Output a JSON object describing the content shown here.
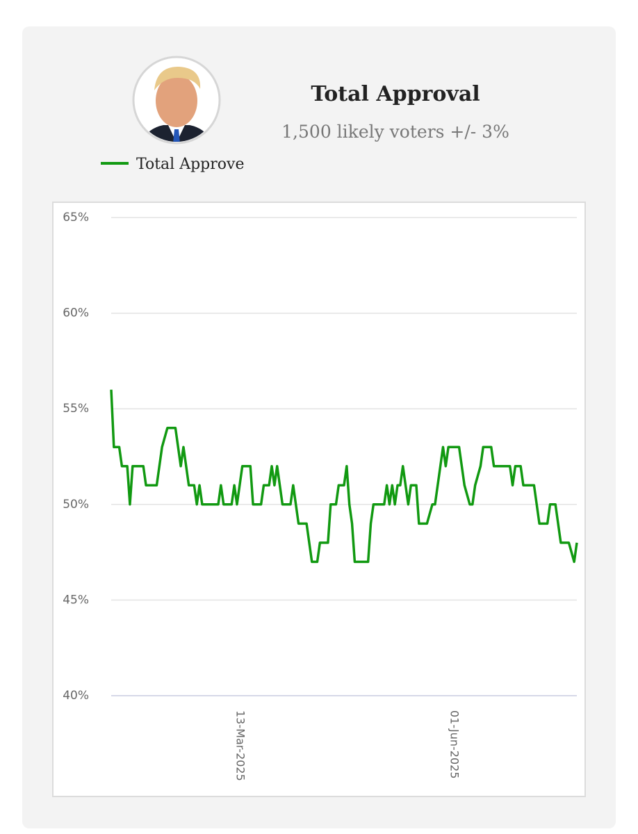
{
  "chart_data": {
    "type": "line",
    "title": "Total Approval",
    "subtitle": "1,500 likely voters +/- 3%",
    "x": [
      "2025-01-24",
      "2025-01-25",
      "2025-01-27",
      "2025-01-28",
      "2025-01-30",
      "2025-01-31",
      "2025-02-01",
      "2025-02-05",
      "2025-02-06",
      "2025-02-10",
      "2025-02-11",
      "2025-02-12",
      "2025-02-14",
      "2025-02-17",
      "2025-02-18",
      "2025-02-19",
      "2025-02-20",
      "2025-02-21",
      "2025-02-22",
      "2025-02-24",
      "2025-02-25",
      "2025-02-26",
      "2025-02-27",
      "2025-03-05",
      "2025-03-06",
      "2025-03-07",
      "2025-03-10",
      "2025-03-11",
      "2025-03-12",
      "2025-03-13",
      "2025-03-14",
      "2025-03-17",
      "2025-03-18",
      "2025-03-21",
      "2025-03-22",
      "2025-03-24",
      "2025-03-25",
      "2025-03-26",
      "2025-03-27",
      "2025-03-28",
      "2025-03-29",
      "2025-04-01",
      "2025-04-02",
      "2025-04-03",
      "2025-04-04",
      "2025-04-07",
      "2025-04-08",
      "2025-04-09",
      "2025-04-11",
      "2025-04-12",
      "2025-04-15",
      "2025-04-16",
      "2025-04-18",
      "2025-04-19",
      "2025-04-21",
      "2025-04-22",
      "2025-04-23",
      "2025-04-24",
      "2025-04-25",
      "2025-04-30",
      "2025-05-01",
      "2025-05-02",
      "2025-05-06",
      "2025-05-07",
      "2025-05-08",
      "2025-05-09",
      "2025-05-10",
      "2025-05-11",
      "2025-05-12",
      "2025-05-13",
      "2025-05-14",
      "2025-05-15",
      "2025-05-16",
      "2025-05-18",
      "2025-05-19",
      "2025-05-22",
      "2025-05-24",
      "2025-05-25",
      "2025-05-27",
      "2025-05-28",
      "2025-05-29",
      "2025-05-30",
      "2025-06-03",
      "2025-06-04",
      "2025-06-05",
      "2025-06-07",
      "2025-06-08",
      "2025-06-09",
      "2025-06-11",
      "2025-06-12",
      "2025-06-15",
      "2025-06-16",
      "2025-06-22",
      "2025-06-23",
      "2025-06-24",
      "2025-06-26",
      "2025-06-27",
      "2025-07-01",
      "2025-07-02",
      "2025-07-03",
      "2025-07-06",
      "2025-07-07",
      "2025-07-09",
      "2025-07-10",
      "2025-07-11",
      "2025-07-14",
      "2025-07-16",
      "2025-07-17"
    ],
    "series": [
      {
        "name": "Total Approve",
        "color": "#119911",
        "values": [
          56,
          53,
          53,
          52,
          52,
          50,
          52,
          52,
          51,
          51,
          52,
          53,
          54,
          54,
          53,
          52,
          53,
          52,
          51,
          51,
          50,
          51,
          50,
          50,
          51,
          50,
          50,
          51,
          50,
          51,
          52,
          52,
          50,
          50,
          51,
          51,
          52,
          51,
          52,
          51,
          50,
          50,
          51,
          50,
          49,
          49,
          48,
          47,
          47,
          48,
          48,
          50,
          50,
          51,
          51,
          52,
          50,
          49,
          47,
          47,
          49,
          50,
          50,
          51,
          50,
          51,
          50,
          51,
          51,
          52,
          51,
          50,
          51,
          51,
          49,
          49,
          50,
          50,
          52,
          53,
          52,
          53,
          53,
          52,
          51,
          50,
          50,
          51,
          52,
          53,
          53,
          52,
          52,
          51,
          52,
          52,
          51,
          51,
          50,
          49,
          49,
          50,
          50,
          49,
          48,
          48,
          47,
          48
        ]
      }
    ],
    "xlim": [
      "2025-01-24",
      "2025-07-17"
    ],
    "xticks": [
      {
        "value": "2025-03-13",
        "label": "13-Mar-2025"
      },
      {
        "value": "2025-06-01",
        "label": "01-Jun-2025"
      }
    ],
    "ylim": [
      40,
      65
    ],
    "yticks": [
      {
        "value": 40,
        "label": "40%"
      },
      {
        "value": 45,
        "label": "45%"
      },
      {
        "value": 50,
        "label": "50%"
      },
      {
        "value": 55,
        "label": "55%"
      },
      {
        "value": 60,
        "label": "60%"
      },
      {
        "value": 65,
        "label": "65%"
      }
    ],
    "grid": true,
    "legend": "top-left"
  }
}
